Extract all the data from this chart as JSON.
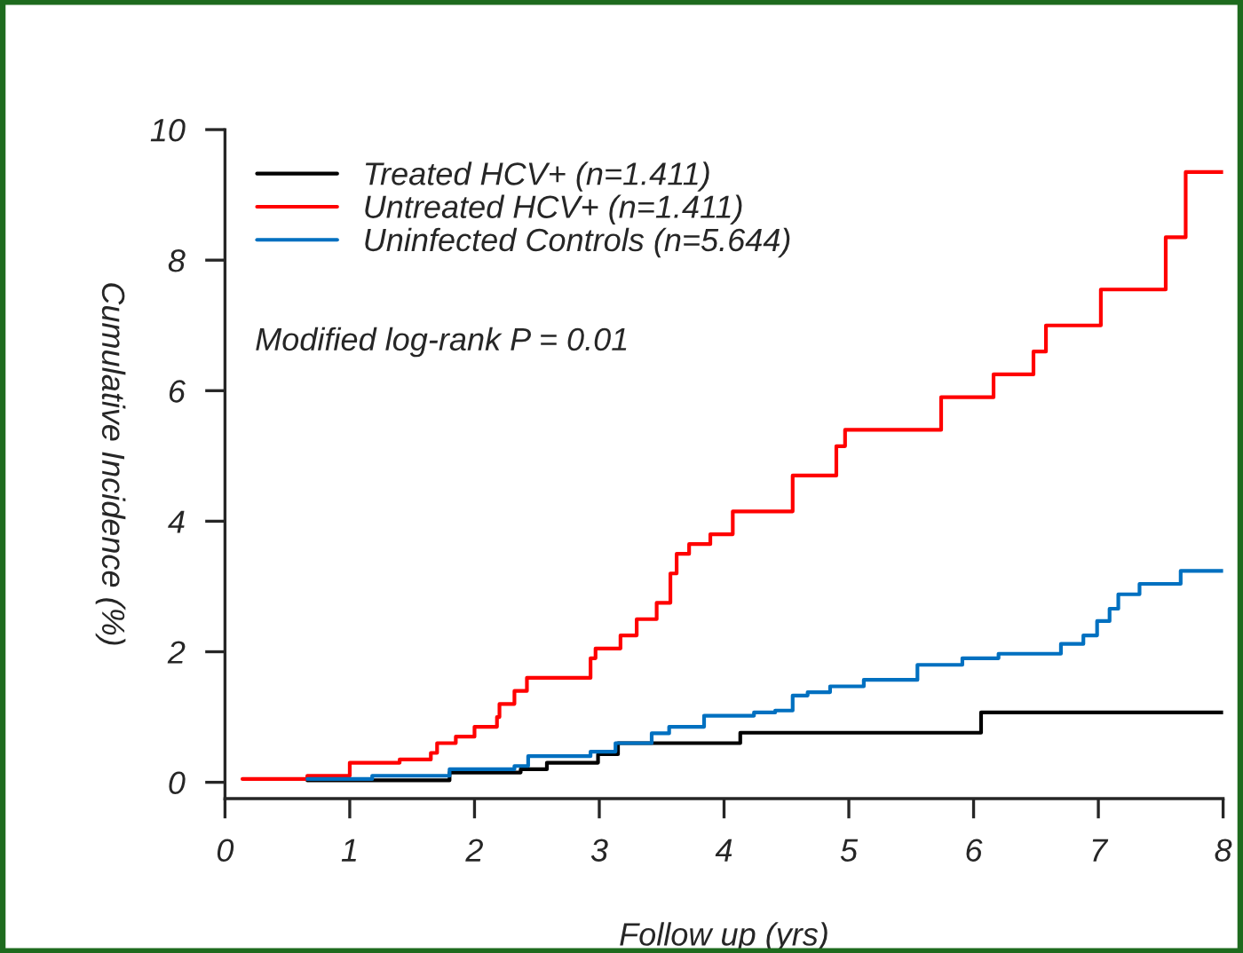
{
  "chart_data": {
    "type": "step",
    "xlabel": "Follow up (yrs)",
    "ylabel": "Cumulative Incidence (%)",
    "xlim": [
      0,
      8
    ],
    "xticks": [
      0,
      1,
      2,
      3,
      4,
      5,
      6,
      7,
      8
    ],
    "ylim": [
      -0.25,
      10
    ],
    "yticks": [
      0,
      2,
      4,
      6,
      8,
      10
    ],
    "grid": false,
    "legend": "top left",
    "line_style": "solid",
    "marker": "none",
    "annotations": [
      "Modified log-rank P = 0.01"
    ],
    "series": [
      {
        "name": "Treated HCV+ (n=1.411)",
        "color": "#000000",
        "x": [
          0.66,
          1.8,
          2.37,
          2.58,
          2.99,
          3.15,
          4.13,
          6.06,
          8.0
        ],
        "values": [
          0.03,
          0.15,
          0.2,
          0.3,
          0.43,
          0.6,
          0.76,
          1.07,
          1.07
        ]
      },
      {
        "name": "Untreated HCV+ (n=1.411)",
        "color": "#ff0000",
        "x": [
          0.14,
          0.66,
          1.0,
          1.4,
          1.65,
          1.7,
          1.85,
          2.0,
          2.18,
          2.2,
          2.32,
          2.42,
          2.93,
          2.97,
          3.17,
          3.3,
          3.46,
          3.57,
          3.62,
          3.72,
          3.89,
          4.07,
          4.55,
          4.9,
          4.97,
          5.74,
          6.16,
          6.48,
          6.58,
          7.02,
          7.54,
          7.7,
          8.0
        ],
        "values": [
          0.05,
          0.1,
          0.3,
          0.35,
          0.45,
          0.6,
          0.7,
          0.85,
          1.0,
          1.2,
          1.4,
          1.6,
          1.9,
          2.05,
          2.25,
          2.5,
          2.75,
          3.2,
          3.5,
          3.65,
          3.8,
          4.15,
          4.7,
          5.15,
          5.4,
          5.9,
          6.25,
          6.6,
          7.0,
          7.55,
          8.35,
          9.35,
          9.35
        ]
      },
      {
        "name": "Uninfected Controls (n=5.644)",
        "color": "#0070c0",
        "x": [
          0.66,
          1.18,
          1.8,
          2.32,
          2.43,
          2.93,
          3.13,
          3.42,
          3.56,
          3.84,
          4.24,
          4.41,
          4.55,
          4.67,
          4.85,
          5.12,
          5.55,
          5.91,
          6.2,
          6.7,
          6.88,
          6.99,
          7.09,
          7.16,
          7.33,
          7.66,
          8.0
        ],
        "values": [
          0.05,
          0.1,
          0.2,
          0.25,
          0.4,
          0.47,
          0.6,
          0.75,
          0.85,
          1.02,
          1.07,
          1.1,
          1.33,
          1.38,
          1.47,
          1.57,
          1.8,
          1.9,
          1.97,
          2.12,
          2.25,
          2.47,
          2.66,
          2.88,
          3.04,
          3.24,
          3.24
        ]
      }
    ]
  }
}
